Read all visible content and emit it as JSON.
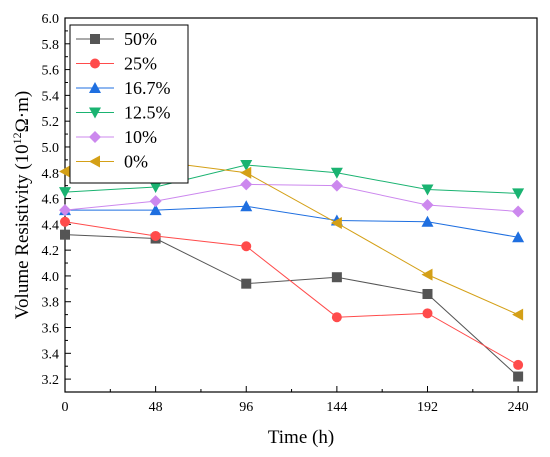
{
  "chart_data": {
    "type": "line",
    "xlabel": "Time (h)",
    "ylabel": {
      "pre": "Volume Resistivity (10",
      "sup": "12",
      "post": "Ω·m)"
    },
    "x": [
      0,
      48,
      96,
      144,
      192,
      240
    ],
    "xticks": [
      "0",
      "48",
      "96",
      "144",
      "192",
      "240"
    ],
    "xlim": [
      0,
      250
    ],
    "ylim": [
      3.1,
      6.0
    ],
    "yticks": [
      "3.2",
      "3.4",
      "3.6",
      "3.8",
      "4.0",
      "4.2",
      "4.4",
      "4.6",
      "4.8",
      "5.0",
      "5.2",
      "5.4",
      "5.6",
      "5.8",
      "6.0"
    ],
    "grid": false,
    "legend_position": "top-left",
    "series": [
      {
        "name": "50%",
        "color": "#555555",
        "marker": "square",
        "values": [
          4.32,
          4.29,
          3.94,
          3.99,
          3.86,
          3.22
        ]
      },
      {
        "name": "25%",
        "color": "#ff4b4b",
        "marker": "circle",
        "values": [
          4.42,
          4.31,
          4.23,
          3.68,
          3.71,
          3.31
        ]
      },
      {
        "name": "16.7%",
        "color": "#1f6fe0",
        "marker": "triangle-up",
        "values": [
          4.51,
          4.51,
          4.54,
          4.43,
          4.42,
          4.3
        ]
      },
      {
        "name": "12.5%",
        "color": "#1ab371",
        "marker": "triangle-down",
        "values": [
          4.65,
          4.69,
          4.86,
          4.8,
          4.67,
          4.64
        ]
      },
      {
        "name": "10%",
        "color": "#cc88ee",
        "marker": "diamond",
        "values": [
          4.51,
          4.58,
          4.71,
          4.7,
          4.55,
          4.5
        ]
      },
      {
        "name": "0%",
        "color": "#d4a017",
        "marker": "triangle-left",
        "values": [
          4.81,
          4.89,
          4.8,
          4.41,
          4.01,
          3.7
        ]
      }
    ]
  }
}
